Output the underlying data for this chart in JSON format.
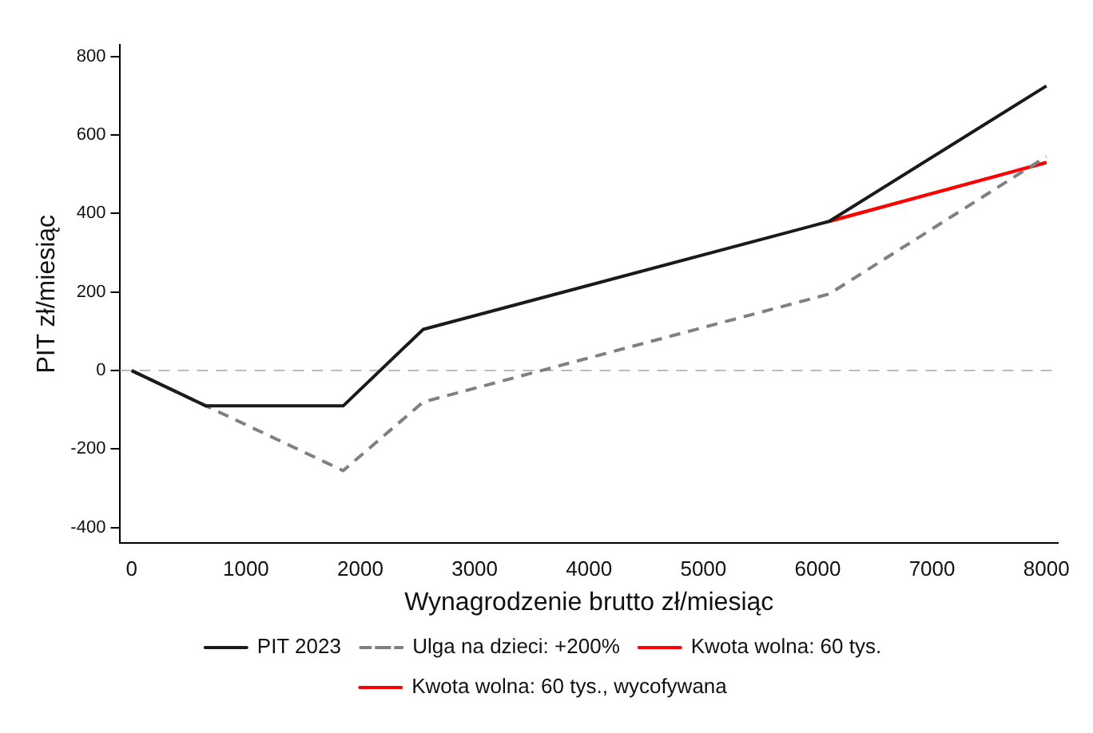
{
  "chart_data": {
    "type": "line",
    "xlabel": "Wynagrodzenie brutto zł/miesiąc",
    "ylabel": "PIT zł/miesiąc",
    "xlim": [
      -100,
      8100
    ],
    "xticks": [
      0,
      1000,
      2000,
      3000,
      4000,
      5000,
      6000,
      7000,
      8000
    ],
    "ylim": [
      -440,
      830
    ],
    "yticks": [
      -400,
      -200,
      0,
      200,
      400,
      600,
      800
    ],
    "grid": false,
    "legend": "bottom",
    "marker": "none",
    "ref_lines": [
      {
        "axis": "y",
        "value": 0,
        "color": "#bbbbbb",
        "line_style": "dashed"
      }
    ],
    "series": [
      {
        "name": "Kwota wolna: 60 tys., wycofywana",
        "color": "#ff0000",
        "x": [
          6100,
          8000
        ],
        "values": [
          380,
          530
        ],
        "line_style": "solid"
      },
      {
        "name": "Kwota wolna: 60 tys.",
        "color": "#ff0000",
        "x": [
          6100,
          8000
        ],
        "values": [
          380,
          530
        ],
        "line_style": "solid"
      },
      {
        "name": "Ulga na dzieci: +200%",
        "color": "#808080",
        "x": [
          0,
          650,
          1850,
          2550,
          6100,
          8000
        ],
        "values": [
          0,
          -90,
          -255,
          -80,
          195,
          545
        ],
        "line_style": "dashed"
      },
      {
        "name": "PIT 2023",
        "color": "#1a1a1a",
        "x": [
          0,
          650,
          1850,
          2550,
          6100,
          8000
        ],
        "values": [
          0,
          -90,
          -90,
          105,
          380,
          725
        ],
        "line_style": "solid"
      }
    ]
  }
}
